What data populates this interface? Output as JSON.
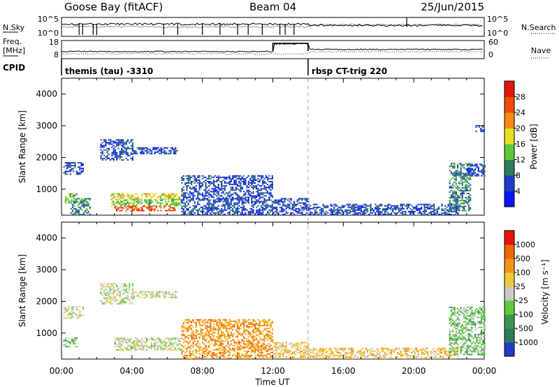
{
  "header": {
    "station": "Goose Bay (fitACF)",
    "beam": "Beam 04",
    "date": "25/Jun/2015"
  },
  "strip_labels": {
    "nsky": "N.Sky",
    "nsky_ticks": [
      "10^5",
      "10^0"
    ],
    "nsearch": "N.Search",
    "nsearch_ticks": [
      "10^5",
      "10^0"
    ],
    "freq_line1": "Freq.",
    "freq_line2": "[MHz]",
    "freq_ticks": [
      "18",
      "8"
    ],
    "nave": "Nave",
    "nave_ticks": [
      "60",
      "0"
    ],
    "cpid": "CPID"
  },
  "cpid_segments": [
    {
      "start_hour": 0.0,
      "label": "themis (tau) -3310"
    },
    {
      "start_hour": 14.0,
      "label": "rbsp CT-trig 220"
    }
  ],
  "chart_data": [
    {
      "type": "heatmap",
      "name": "power",
      "xlabel": "",
      "ylabel": "Slant Range [km]",
      "xlim": [
        0,
        24
      ],
      "ylim": [
        180,
        4500
      ],
      "y_ticks": [
        1000,
        2000,
        3000,
        4000
      ],
      "colorbar": {
        "label": "Power [dB]",
        "tick_labels": [
          "4",
          "8",
          "12",
          "16",
          "20",
          "24",
          "28"
        ],
        "colors": [
          "#0a14ff",
          "#1e3cc8",
          "#2e7d5a",
          "#5ec83c",
          "#e6e01e",
          "#f58c0a",
          "#f04b0a",
          "#e6140a"
        ]
      },
      "echo_regions": [
        {
          "t": [
            0.1,
            1.2
          ],
          "r": [
            1450,
            1850
          ],
          "level": 1
        },
        {
          "t": [
            2.2,
            4.0
          ],
          "r": [
            1900,
            2550
          ],
          "level": 1
        },
        {
          "t": [
            4.0,
            6.6
          ],
          "r": [
            2100,
            2300
          ],
          "level": 1
        },
        {
          "t": [
            0.1,
            0.9
          ],
          "r": [
            550,
            850
          ],
          "level": 3
        },
        {
          "t": [
            0.5,
            1.6
          ],
          "r": [
            180,
            700
          ],
          "level": 2
        },
        {
          "t": [
            2.8,
            6.8
          ],
          "r": [
            650,
            850
          ],
          "level": 4
        },
        {
          "t": [
            2.8,
            6.8
          ],
          "r": [
            450,
            650
          ],
          "level": 3
        },
        {
          "t": [
            3.0,
            6.5
          ],
          "r": [
            300,
            450
          ],
          "level": 6
        },
        {
          "t": [
            6.8,
            12.0
          ],
          "r": [
            180,
            1400
          ],
          "level": 1
        },
        {
          "t": [
            12.0,
            14.0
          ],
          "r": [
            180,
            700
          ],
          "level": 1
        },
        {
          "t": [
            14.0,
            22.5
          ],
          "r": [
            180,
            500
          ],
          "level": 1
        },
        {
          "t": [
            18.2,
            19.2
          ],
          "r": [
            330,
            400
          ],
          "level": 1
        },
        {
          "t": [
            22.0,
            23.2
          ],
          "r": [
            300,
            1800
          ],
          "level": 2
        },
        {
          "t": [
            23.0,
            24.0
          ],
          "r": [
            1400,
            1800
          ],
          "level": 1
        },
        {
          "t": [
            23.5,
            24.0
          ],
          "r": [
            2800,
            3000
          ],
          "level": 1
        }
      ]
    },
    {
      "type": "heatmap",
      "name": "velocity",
      "xlabel": "Time UT",
      "ylabel": "Slant Range [km]",
      "xlim": [
        0,
        24
      ],
      "ylim": [
        180,
        4500
      ],
      "x_tick_labels": [
        "00:00",
        "04:00",
        "08:00",
        "12:00",
        "16:00",
        "20:00",
        "00:00"
      ],
      "y_ticks": [
        1000,
        2000,
        3000,
        4000
      ],
      "colorbar": {
        "label": "Velocity [m s⁻¹]",
        "tick_labels": [
          "1000",
          "500",
          "100",
          "25",
          "-25",
          "-100",
          "-500",
          "-1000"
        ],
        "colors": [
          "#1e3cc8",
          "#2f7a5a",
          "#3c9650",
          "#64c83c",
          "#c8c8c8",
          "#f0c83c",
          "#f5960f",
          "#f0640a",
          "#e6140a"
        ]
      },
      "echo_regions": [
        {
          "t": [
            0.1,
            1.2
          ],
          "r": [
            1450,
            1850
          ],
          "level": 4
        },
        {
          "t": [
            2.2,
            4.0
          ],
          "r": [
            1900,
            2550
          ],
          "level": 4
        },
        {
          "t": [
            4.0,
            6.6
          ],
          "r": [
            2100,
            2300
          ],
          "level": 4
        },
        {
          "t": [
            0.1,
            0.9
          ],
          "r": [
            550,
            850
          ],
          "level": 3
        },
        {
          "t": [
            3.0,
            6.8
          ],
          "r": [
            450,
            850
          ],
          "level": 4
        },
        {
          "t": [
            6.8,
            12.0
          ],
          "r": [
            180,
            1400
          ],
          "level": 6
        },
        {
          "t": [
            12.0,
            14.0
          ],
          "r": [
            180,
            700
          ],
          "level": 5
        },
        {
          "t": [
            14.0,
            22.5
          ],
          "r": [
            180,
            500
          ],
          "level": 5
        },
        {
          "t": [
            22.0,
            24.0
          ],
          "r": [
            300,
            1800
          ],
          "level": 3
        }
      ]
    }
  ]
}
